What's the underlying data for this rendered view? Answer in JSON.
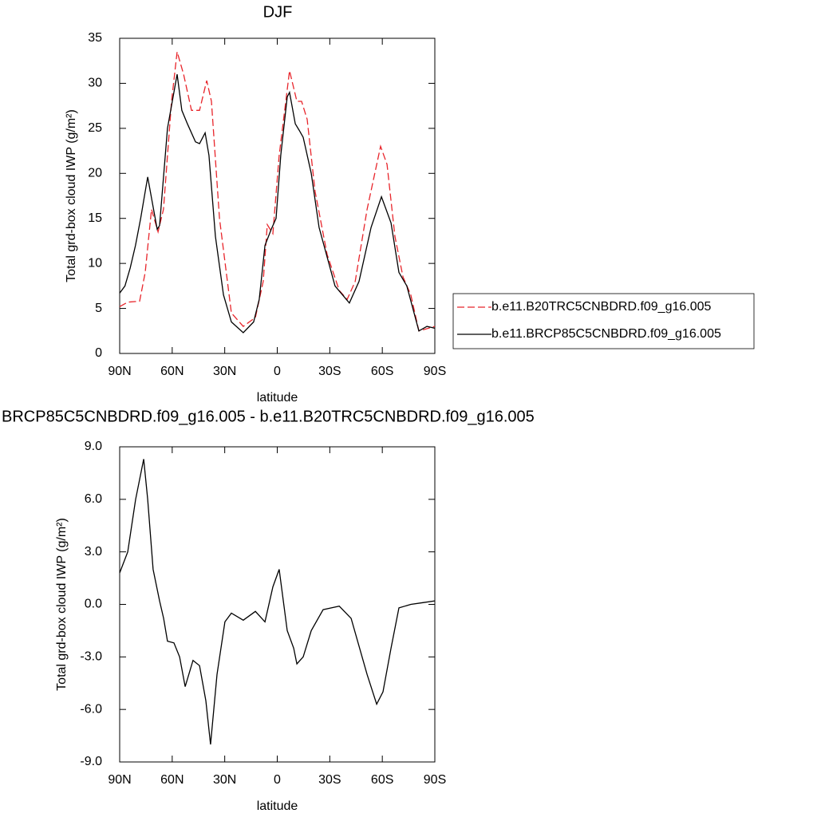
{
  "chart_data": [
    {
      "type": "line",
      "title": "DJF",
      "x_label": "latitude",
      "y_label": "Total grd-box cloud IWP (g/m²)",
      "x": [
        90,
        87,
        84,
        81,
        78,
        74,
        68.6,
        67.2,
        62.7,
        57.2,
        54.5,
        51.3,
        46.7,
        44.4,
        41.2,
        39,
        35.3,
        30.7,
        26.2,
        19.4,
        13.5,
        10.3,
        7,
        3.4,
        0.7,
        -2,
        -5.7,
        -7,
        -10.3,
        -12.5,
        -14.8,
        -19.4,
        -23.9,
        -33,
        -41.2,
        -46.7,
        -53.6,
        -59.5,
        -65,
        -69.5,
        -74,
        -80.9,
        -85.5,
        -90
      ],
      "series": [
        {
          "name": "b.e11.B20TRC5CNBDRD.f09_g16.005",
          "color": "#e8252b",
          "line_style": "dashed",
          "x": [
            90,
            85.4,
            78.6,
            75.4,
            71.8,
            68.1,
            65,
            60.4,
            57.2,
            53.5,
            49,
            44.4,
            40.3,
            37.6,
            33,
            26.2,
            19.4,
            12.5,
            8,
            5.7,
            2.5,
            -1.1,
            -7,
            -11.2,
            -13.9,
            -17.1,
            -21.6,
            -28.5,
            -35.4,
            -39.9,
            -44.5,
            -51.3,
            -59,
            -62.7,
            -67.2,
            -71.8,
            -76.3,
            -80.9,
            -90
          ],
          "values": [
            5.2,
            5.7,
            5.8,
            9,
            16,
            13.5,
            16,
            28,
            33.5,
            31,
            27,
            27,
            30.3,
            28,
            15,
            4.5,
            3,
            4,
            8,
            14.3,
            13.3,
            22,
            31.4,
            28,
            28,
            26,
            18,
            11,
            7,
            6,
            8,
            16,
            23,
            21,
            13,
            8.5,
            6.5,
            2.5,
            3
          ]
        },
        {
          "name": "b.e11.BRCP85C5CNBDRD.f09_g16.005",
          "color": "#000000",
          "line_style": "solid",
          "values": [
            6.7,
            7.5,
            9.5,
            12,
            15,
            19.6,
            13.8,
            14.2,
            25,
            31,
            27,
            25.5,
            23.5,
            23.3,
            24.5,
            22,
            13,
            6.5,
            3.5,
            2.3,
            3.5,
            6,
            12,
            13.8,
            15,
            22,
            28.5,
            29,
            25.5,
            24.8,
            24,
            20,
            14,
            7.5,
            5.6,
            8,
            14,
            17.4,
            14.5,
            9,
            7.5,
            2.5,
            3,
            2.8
          ]
        }
      ],
      "xlim": [
        90,
        -90
      ],
      "xticks": [
        {
          "value": 90,
          "label": "90N"
        },
        {
          "value": 60,
          "label": "60N"
        },
        {
          "value": 30,
          "label": "30N"
        },
        0,
        {
          "value": -30,
          "label": "30S"
        },
        {
          "value": -60,
          "label": "60S"
        },
        {
          "value": -90,
          "label": "90S"
        }
      ],
      "ylim": [
        0,
        35
      ],
      "yticks": [
        0,
        5,
        10,
        15,
        20,
        25,
        30,
        35
      ],
      "legend": "right"
    },
    {
      "type": "line",
      "title": "BRCP85C5CNBDRD.f09_g16.005 - b.e11.B20TRC5CNBDRD.f09_g16.005",
      "x_label": "latitude",
      "y_label": "Total grd-box cloud IWP (g/m²)",
      "x": [
        90,
        85.4,
        80.9,
        76.3,
        74,
        70.9,
        67.2,
        64.9,
        62.7,
        59,
        55.8,
        52.6,
        48.1,
        44.4,
        40.8,
        38.1,
        34.4,
        29.9,
        26.2,
        19.4,
        12.5,
        7,
        2.5,
        -1.1,
        -5.7,
        -9.4,
        -11.2,
        -14.8,
        -19.4,
        -26.2,
        -35.4,
        -42.2,
        -51.3,
        -56.8,
        -60.4,
        -65,
        -69.5,
        -76.3,
        -83.2,
        -90
      ],
      "series": [
        {
          "color": "#000000",
          "line_style": "solid",
          "values": [
            1.8,
            3,
            6,
            8.3,
            6,
            2,
            0.2,
            -0.8,
            -2.1,
            -2.2,
            -3,
            -4.7,
            -3.2,
            -3.5,
            -5.5,
            -8,
            -4,
            -1,
            -0.5,
            -0.9,
            -0.4,
            -1,
            1,
            2,
            -1.5,
            -2.5,
            -3.4,
            -3,
            -1.5,
            -0.3,
            -0.1,
            -0.8,
            -4,
            -5.7,
            -5,
            -2.5,
            -0.2,
            0,
            0.1,
            0.2
          ]
        }
      ],
      "xlim": [
        90,
        -90
      ],
      "xticks": [
        {
          "value": 90,
          "label": "90N"
        },
        {
          "value": 60,
          "label": "60N"
        },
        {
          "value": 30,
          "label": "30N"
        },
        0,
        {
          "value": -30,
          "label": "30S"
        },
        {
          "value": -60,
          "label": "60S"
        },
        {
          "value": -90,
          "label": "90S"
        }
      ],
      "ylim": [
        -9,
        9
      ],
      "yticks": [
        {
          "value": -9,
          "label": "-9.0"
        },
        {
          "value": -6,
          "label": "-6.0"
        },
        {
          "value": -3,
          "label": "-3.0"
        },
        {
          "value": 0,
          "label": "0.0"
        },
        {
          "value": 3,
          "label": "3.0"
        },
        {
          "value": 6,
          "label": "6.0"
        },
        {
          "value": 9,
          "label": "9.0"
        }
      ]
    }
  ]
}
